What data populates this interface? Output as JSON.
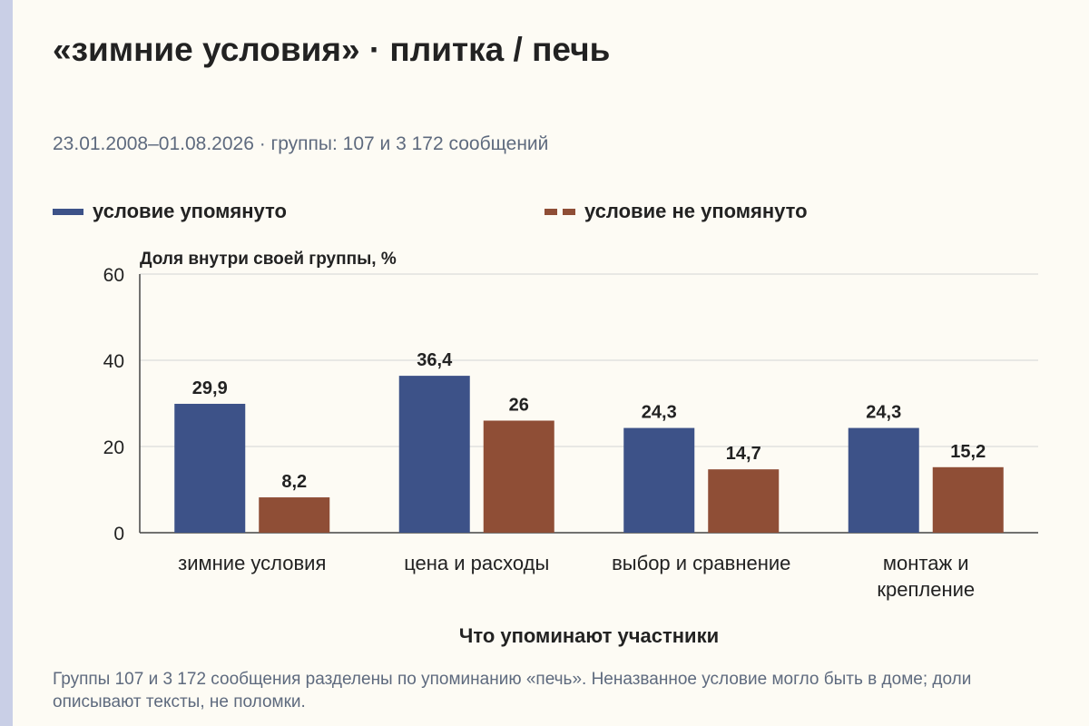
{
  "title": "«зимние условия» · плитка / печь",
  "subtitle": "23.01.2008–01.08.2026 · группы: 107 и 3 172 сообщений",
  "footnote": "Группы 107 и 3 172 сообщения разделены по упоминанию «печь». Неназванное условие могло быть в доме; доли описывают тексты, не поломки.",
  "colors": {
    "mentioned": "#3d5288",
    "not_mentioned": "#8f4e36",
    "background": "#fdfbf4",
    "accent_strip": "#c9cfe6"
  },
  "chart_data": {
    "type": "bar",
    "ylabel": "Доля внутри своей группы, %",
    "xlabel": "Что упоминают участники",
    "ylim": [
      0,
      60
    ],
    "yticks": [
      0,
      20,
      40,
      60
    ],
    "grid": true,
    "legend_position": "top",
    "categories": [
      [
        "зимние условия"
      ],
      [
        "цена и расходы"
      ],
      [
        "выбор и сравнение"
      ],
      [
        "монтаж и",
        "крепление"
      ]
    ],
    "series": [
      {
        "name": "условие упомянуто",
        "values": [
          29.9,
          36.4,
          24.3,
          24.3
        ],
        "labels": [
          "29,9",
          "36,4",
          "24,3",
          "24,3"
        ]
      },
      {
        "name": "условие не упомянуто",
        "values": [
          8.2,
          26,
          14.7,
          15.2
        ],
        "labels": [
          "8,2",
          "26",
          "14,7",
          "15,2"
        ]
      }
    ]
  }
}
